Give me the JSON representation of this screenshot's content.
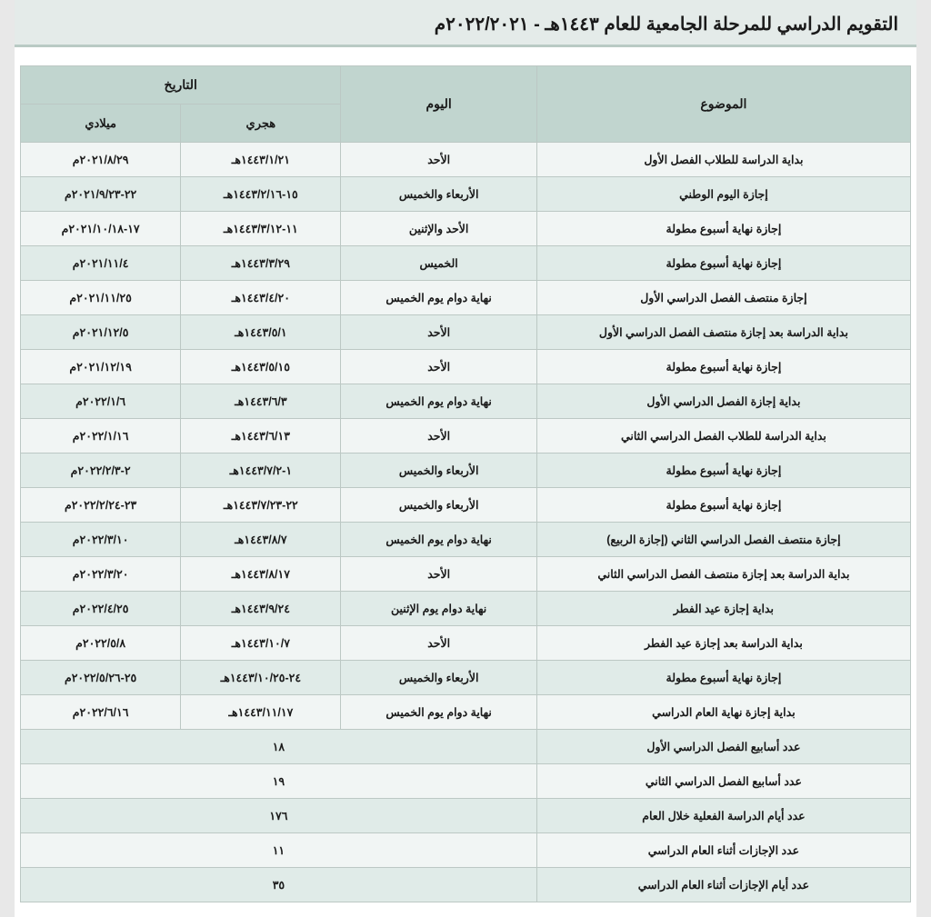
{
  "title": "التقويم الدراسي للمرحلة الجامعية للعام ١٤٤٣هـ - ٢٠٢٢/٢٠٢١م",
  "colors": {
    "page_bg": "#e8e8e8",
    "sheet_bg": "#ffffff",
    "title_bg": "#e4ebe9",
    "title_underline": "#b9cac4",
    "header_bg": "#c1d5cf",
    "row_odd_bg": "#f1f5f4",
    "row_even_bg": "#e0ebe8",
    "border": "#bcc8c4",
    "text": "#1a1a1a"
  },
  "table": {
    "header": {
      "subject": "الموضوع",
      "day": "اليوم",
      "date": "التاريخ",
      "hijri": "هجري",
      "greg": "ميلادي"
    },
    "columns": [
      {
        "key": "subject",
        "width_pct": 42,
        "align": "center"
      },
      {
        "key": "day",
        "width_pct": 22,
        "align": "center"
      },
      {
        "key": "hijri",
        "width_pct": 18,
        "align": "center"
      },
      {
        "key": "greg",
        "width_pct": 18,
        "align": "center"
      }
    ],
    "rows": [
      {
        "subject": "بداية الدراسة للطلاب الفصل الأول",
        "day": "الأحد",
        "hijri": "١٤٤٣/١/٢١هـ",
        "greg": "٢٠٢١/٨/٢٩م"
      },
      {
        "subject": "إجازة اليوم الوطني",
        "day": "الأربعاء والخميس",
        "hijri": "١٥-١٤٤٣/٢/١٦هـ",
        "greg": "٢٢-٢٠٢١/٩/٢٣م"
      },
      {
        "subject": "إجازة نهاية أسبوع مطولة",
        "day": "الأحد والإثنين",
        "hijri": "١١-١٤٤٣/٣/١٢هـ",
        "greg": "١٧-٢٠٢١/١٠/١٨م"
      },
      {
        "subject": "إجازة نهاية أسبوع مطولة",
        "day": "الخميس",
        "hijri": "١٤٤٣/٣/٢٩هـ",
        "greg": "٢٠٢١/١١/٤م"
      },
      {
        "subject": "إجازة منتصف الفصل الدراسي الأول",
        "day": "نهاية دوام  يوم الخميس",
        "hijri": "١٤٤٣/٤/٢٠هـ",
        "greg": "٢٠٢١/١١/٢٥م"
      },
      {
        "subject": "بداية الدراسة بعد إجازة منتصف الفصل الدراسي الأول",
        "day": "الأحد",
        "hijri": "١٤٤٣/٥/١هـ",
        "greg": "٢٠٢١/١٢/٥م"
      },
      {
        "subject": "إجازة نهاية أسبوع مطولة",
        "day": "الأحد",
        "hijri": "١٤٤٣/٥/١٥هـ",
        "greg": "٢٠٢١/١٢/١٩م"
      },
      {
        "subject": "بداية إجازة الفصل الدراسي الأول",
        "day": "نهاية دوام  يوم الخميس",
        "hijri": "١٤٤٣/٦/٣هـ",
        "greg": "٢٠٢٢/١/٦م"
      },
      {
        "subject": "بداية الدراسة للطلاب الفصل الدراسي الثاني",
        "day": "الأحد",
        "hijri": "١٤٤٣/٦/١٣هـ",
        "greg": "٢٠٢٢/١/١٦م"
      },
      {
        "subject": "إجازة نهاية أسبوع مطولة",
        "day": "الأربعاء والخميس",
        "hijri": "١-١٤٤٣/٧/٢هـ",
        "greg": "٢-٢٠٢٢/٢/٣م"
      },
      {
        "subject": "إجازة نهاية أسبوع مطولة",
        "day": "الأربعاء والخميس",
        "hijri": "٢٢-١٤٤٣/٧/٢٣هـ",
        "greg": "٢٣-٢٠٢٢/٢/٢٤م"
      },
      {
        "subject": "إجازة منتصف الفصل الدراسي الثاني (إجازة الربيع)",
        "day": "نهاية دوام يوم الخميس",
        "hijri": "١٤٤٣/٨/٧هـ",
        "greg": "٢٠٢٢/٣/١٠م"
      },
      {
        "subject": "بداية الدراسة بعد إجازة منتصف الفصل الدراسي الثاني",
        "day": "الأحد",
        "hijri": "١٤٤٣/٨/١٧هـ",
        "greg": "٢٠٢٢/٣/٢٠م"
      },
      {
        "subject": "بداية إجازة عيد الفطر",
        "day": "نهاية دوام  يوم الإثنين",
        "hijri": "١٤٤٣/٩/٢٤هـ",
        "greg": "٢٠٢٢/٤/٢٥م"
      },
      {
        "subject": "بداية الدراسة بعد إجازة عيد الفطر",
        "day": "الأحد",
        "hijri": "١٤٤٣/١٠/٧هـ",
        "greg": "٢٠٢٢/٥/٨م"
      },
      {
        "subject": "إجازة نهاية أسبوع مطولة",
        "day": "الأربعاء والخميس",
        "hijri": "٢٤-١٤٤٣/١٠/٢٥هـ",
        "greg": "٢٥-٢٠٢٢/٥/٢٦م"
      },
      {
        "subject": "بداية إجازة نهاية العام الدراسي",
        "day": "نهاية دوام يوم الخميس",
        "hijri": "١٤٤٣/١١/١٧هـ",
        "greg": "٢٠٢٢/٦/١٦م"
      }
    ],
    "summary": [
      {
        "label": "عدد أسابيع الفصل الدراسي الأول",
        "value": "١٨"
      },
      {
        "label": "عدد أسابيع الفصل الدراسي الثاني",
        "value": "١٩"
      },
      {
        "label": "عدد أيام الدراسة الفعلية خلال العام",
        "value": "١٧٦"
      },
      {
        "label": "عدد الإجازات أثناء العام الدراسي",
        "value": "١١"
      },
      {
        "label": "عدد أيام الإجازات أثناء العام الدراسي",
        "value": "٣٥"
      }
    ]
  }
}
